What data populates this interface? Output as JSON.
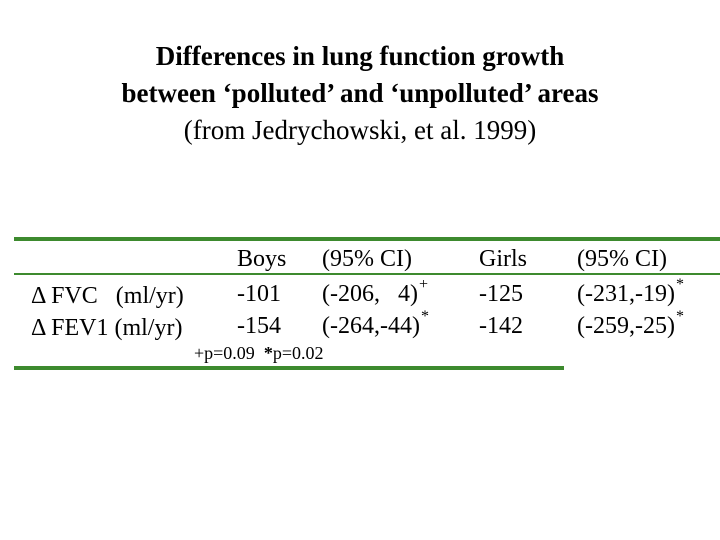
{
  "title": {
    "line1": "Differences in lung function growth",
    "line2": "between ‘polluted’ and ‘unpolluted’ areas",
    "line3": "(from Jedrychowski, et al. 1999)"
  },
  "table": {
    "headers": [
      "Boys",
      "(95% CI)",
      "Girls",
      "(95% CI)"
    ],
    "rows": [
      {
        "label": "Δ FVC   (ml/yr)",
        "boys": "-101",
        "boys_ci": "(-206,   4)",
        "boys_ci_mark": "+",
        "girls": "-125",
        "girls_ci": "(-231,-19)",
        "girls_ci_mark": "*"
      },
      {
        "label": "Δ FEV1 (ml/yr)",
        "boys": "-154",
        "boys_ci": "(-264,-44)",
        "boys_ci_mark": "*",
        "girls": "-142",
        "girls_ci": "(-259,-25)",
        "girls_ci_mark": "*"
      }
    ],
    "footnote": {
      "plus": "+p=0.09",
      "star_mark": "*",
      "star_text": "p=0.02"
    }
  },
  "colors": {
    "rule": "#3d8a2e"
  }
}
